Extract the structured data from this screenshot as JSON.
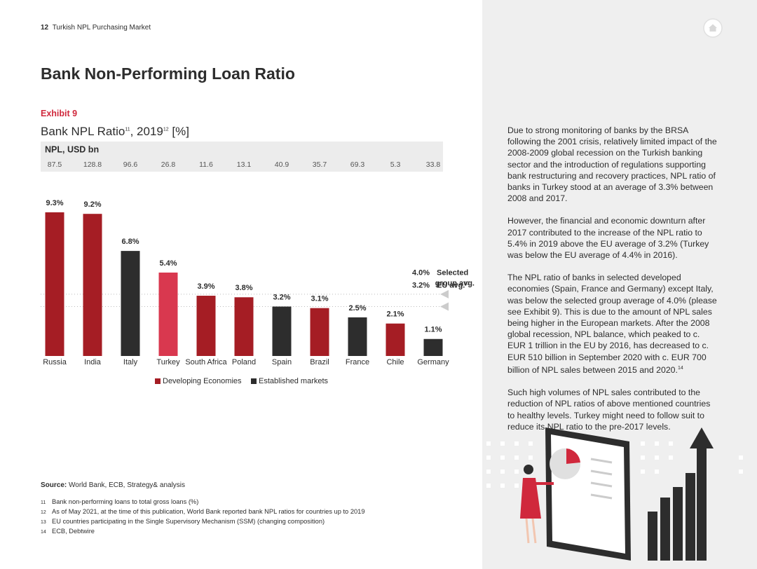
{
  "header": {
    "page_number": "12",
    "title": "Turkish NPL Purchasing Market"
  },
  "heading": "Bank Non-Performing Loan Ratio",
  "exhibit": "Exhibit 9",
  "chart_data": {
    "type": "bar",
    "title": [
      "Bank NPL Ratio",
      "11",
      ", 2019",
      "12",
      " [%]"
    ],
    "npl_label": "NPL, USD bn",
    "npl_values": [
      87.5,
      128.8,
      96.6,
      26.8,
      11.6,
      13.1,
      40.9,
      35.7,
      69.3,
      5.3,
      33.8
    ],
    "categories": [
      "Russia",
      "India",
      "Italy",
      "Turkey",
      "South Africa",
      "Poland",
      "Spain",
      "Brazil",
      "France",
      "Chile",
      "Germany"
    ],
    "values": [
      9.3,
      9.2,
      6.8,
      5.4,
      3.9,
      3.8,
      3.2,
      3.1,
      2.5,
      2.1,
      1.1
    ],
    "value_labels": [
      "9.3%",
      "9.2%",
      "6.8%",
      "5.4%",
      "3.9%",
      "3.8%",
      "3.2%",
      "3.1%",
      "2.5%",
      "2.1%",
      "1.1%"
    ],
    "colors": [
      "#a51d24",
      "#a51d24",
      "#2d2d2d",
      "#d9384f",
      "#a51d24",
      "#a51d24",
      "#2d2d2d",
      "#a51d24",
      "#2d2d2d",
      "#a51d24",
      "#2d2d2d"
    ],
    "legend": [
      {
        "name": "Developing Economies",
        "color": "#a51d24"
      },
      {
        "name": "Established markets",
        "color": "#2d2d2d"
      }
    ],
    "reference_lines": [
      {
        "value": 4.0,
        "value_label": "4.0%",
        "label_lines": [
          "Selected",
          "group avg."
        ]
      },
      {
        "value": 3.2,
        "value_label": "3.2%",
        "label_lines": [
          "EU avg."
        ],
        "note": "13"
      }
    ]
  },
  "source": {
    "label": "Source:",
    "text": "World Bank, ECB, Strategy& analysis"
  },
  "footnotes": [
    {
      "number": "11",
      "text": "Bank non-performing loans to total gross loans (%)"
    },
    {
      "number": "12",
      "text": "As of May 2021, at the time of this publication, World Bank reported bank NPL ratios for countries up to 2019"
    },
    {
      "number": "13",
      "text": "EU countries participating in the Single Supervisory Mechanism (SSM) (changing composition)"
    },
    {
      "number": "14",
      "text": "ECB, Debtwire"
    }
  ],
  "body": [
    "Due to strong monitoring of banks by the BRSA following the 2001 crisis, relatively limited impact of the 2008-2009 global recession on the Turkish banking sector and the introduction of regulations supporting bank restructuring and recovery practices, NPL ratio of banks in Turkey stood at an average of 3.3% between 2008 and 2017.",
    "However, the financial and economic downturn after 2017 contributed to the increase of the NPL ratio to 5.4% in 2019 above the EU average of 3.2% (Turkey was below the EU average of 4.4% in 2016).",
    {
      "text": "The NPL ratio of banks in selected developed economies (Spain, France and Germany) except Italy, was below the selected group average of 4.0% (please see Exhibit 9). This is due to the amount of NPL sales being higher in the European markets. After the 2008 global recession, NPL balance, which peaked to c. EUR 1 trillion in the EU by 2016, has decreased to c. EUR 510 billion in September 2020 with c. EUR 700 billion of NPL sales between 2015 and 2020.",
      "note": "14"
    },
    "Such high volumes of NPL sales contributed to the reduction of NPL ratios of above mentioned countries to healthy levels. Turkey might need to follow suit to reduce its NPL ratio to the pre-2017 levels."
  ]
}
